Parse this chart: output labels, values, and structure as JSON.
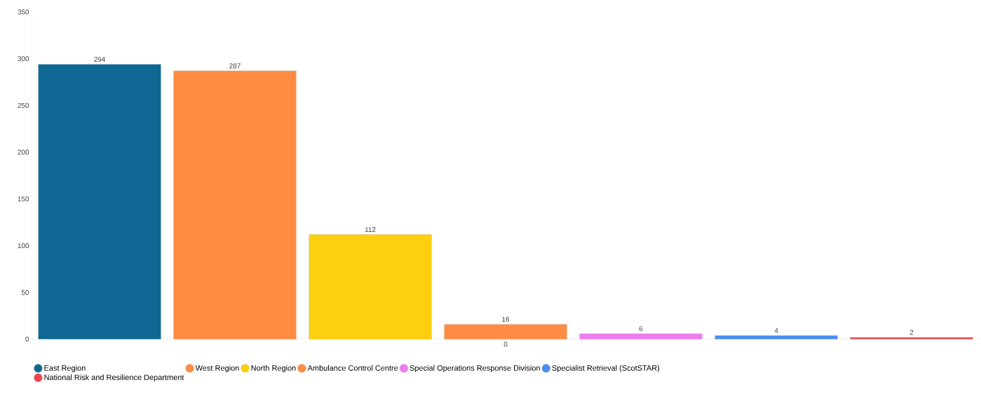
{
  "chart_data": {
    "type": "bar",
    "categories": [
      "0"
    ],
    "series": [
      {
        "name": "East Region",
        "color": "#0f6893",
        "values": [
          294
        ]
      },
      {
        "name": "West Region",
        "color": "#ff8c42",
        "values": [
          287
        ]
      },
      {
        "name": "North Region",
        "color": "#fccf0f",
        "values": [
          112
        ]
      },
      {
        "name": "Ambulance Control Centre",
        "color": "#ff8c42",
        "values": [
          16
        ]
      },
      {
        "name": "Special Operations Response Division",
        "color": "#ef7bef",
        "values": [
          6
        ]
      },
      {
        "name": "Specialist Retrieval (ScotSTAR)",
        "color": "#4a8cf5",
        "values": [
          4
        ]
      },
      {
        "name": "National Risk and Resilience Department",
        "color": "#f0454f",
        "values": [
          2
        ]
      }
    ],
    "ylim": [
      0,
      350
    ],
    "yticks": [
      0,
      50,
      100,
      150,
      200,
      250,
      300,
      350
    ],
    "data_labels": true,
    "legend": "bottom",
    "grid": false
  }
}
